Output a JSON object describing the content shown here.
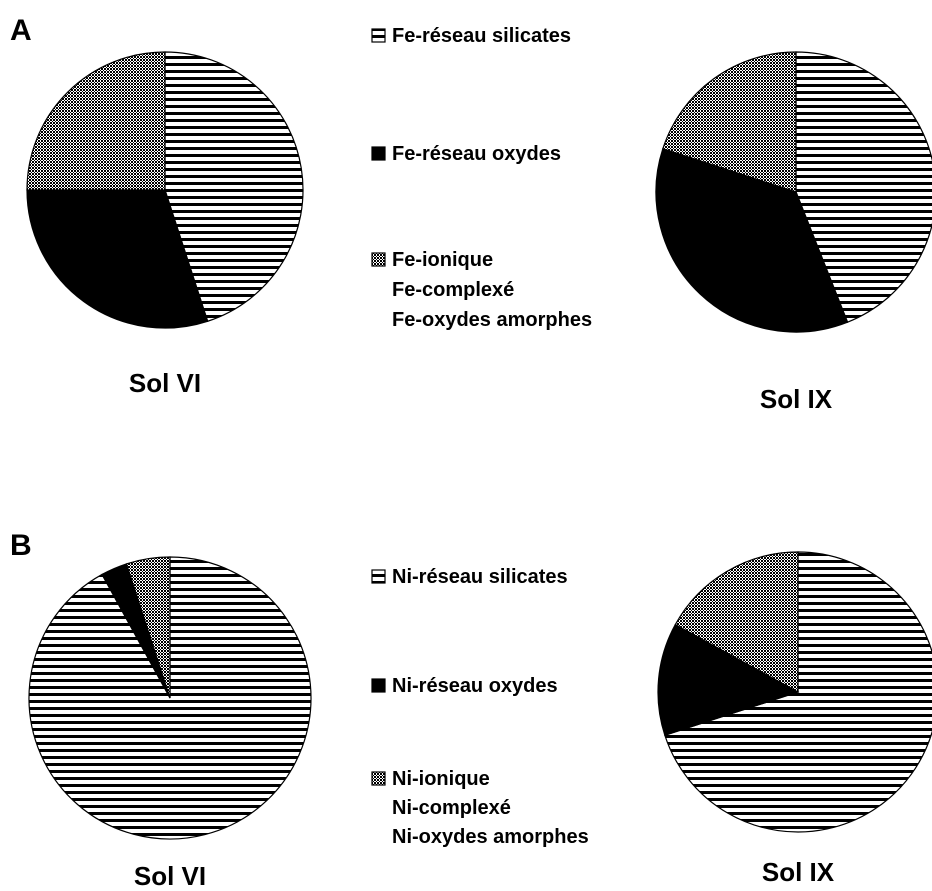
{
  "chart_data": [
    {
      "type": "pie",
      "panel": "A",
      "legend": {
        "placement": "center",
        "entries": [
          {
            "key": "silicates",
            "lines": [
              "Fe-réseau silicates"
            ]
          },
          {
            "key": "oxydes",
            "lines": [
              "Fe-réseau oxydes"
            ]
          },
          {
            "key": "ionique",
            "lines": [
              "Fe-ionique",
              "Fe-complexé",
              "Fe-oxydes amorphes"
            ]
          }
        ]
      },
      "pies": [
        {
          "label": "Sol VI",
          "slices": [
            {
              "key": "silicates",
              "value": 45
            },
            {
              "key": "oxydes",
              "value": 30
            },
            {
              "key": "ionique",
              "value": 25
            }
          ]
        },
        {
          "label": "Sol IX",
          "slices": [
            {
              "key": "silicates",
              "value": 44
            },
            {
              "key": "oxydes",
              "value": 36
            },
            {
              "key": "ionique",
              "value": 20
            }
          ]
        }
      ]
    },
    {
      "type": "pie",
      "panel": "B",
      "legend": {
        "placement": "center",
        "entries": [
          {
            "key": "silicates",
            "lines": [
              "Ni-réseau silicates"
            ]
          },
          {
            "key": "oxydes",
            "lines": [
              "Ni-réseau oxydes"
            ]
          },
          {
            "key": "ionique",
            "lines": [
              "Ni-ionique",
              "Ni-complexé",
              "Ni-oxydes amorphes"
            ]
          }
        ]
      },
      "pies": [
        {
          "label": "Sol VI",
          "slices": [
            {
              "key": "silicates",
              "value": 92
            },
            {
              "key": "oxydes",
              "value": 3
            },
            {
              "key": "ionique",
              "value": 5
            }
          ]
        },
        {
          "label": "Sol IX",
          "slices": [
            {
              "key": "silicates",
              "value": 70
            },
            {
              "key": "oxydes",
              "value": 13
            },
            {
              "key": "ionique",
              "value": 17
            }
          ]
        }
      ]
    }
  ]
}
